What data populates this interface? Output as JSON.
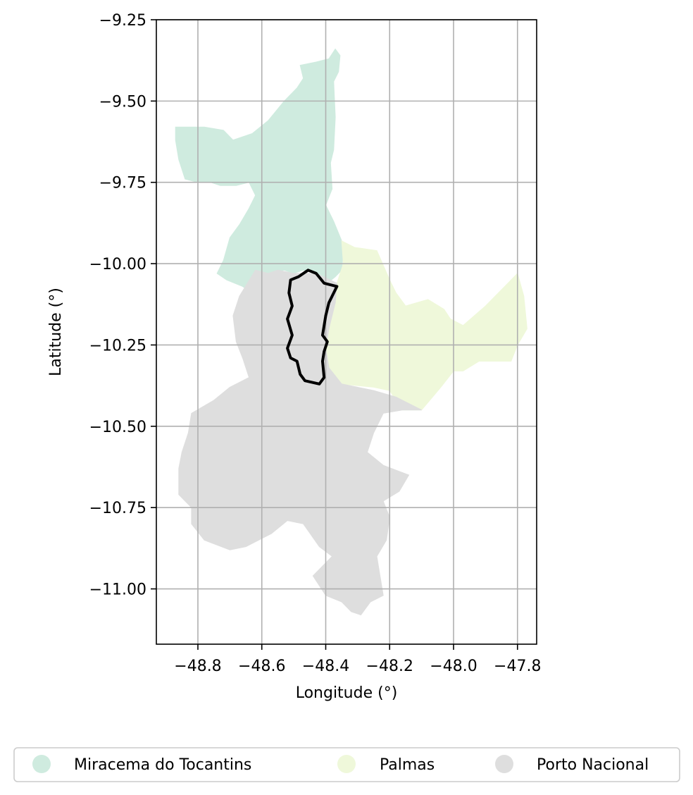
{
  "chart_data": {
    "type": "map",
    "xlabel": "Longitude (°)",
    "ylabel": "Latitude (°)",
    "xlim": [
      -48.93,
      -47.74
    ],
    "ylim": [
      -11.17,
      -9.25
    ],
    "xticks": [
      -48.8,
      -48.6,
      -48.4,
      -48.2,
      -48.0,
      -47.8
    ],
    "xtick_labels": [
      "−48.8",
      "−48.6",
      "−48.4",
      "−48.2",
      "−48.0",
      "−47.8"
    ],
    "yticks": [
      -9.25,
      -9.5,
      -9.75,
      -10.0,
      -10.25,
      -10.5,
      -10.75,
      -11.0
    ],
    "ytick_labels": [
      "−9.25",
      "−9.50",
      "−9.75",
      "−10.00",
      "−10.25",
      "−10.50",
      "−10.75",
      "−11.00"
    ],
    "grid": true,
    "legend_position": "bottom",
    "regions": [
      {
        "name": "Miracema do Tocantins",
        "color": "#cfebdf",
        "polygon": [
          [
            -48.37,
            -9.34
          ],
          [
            -48.355,
            -9.36
          ],
          [
            -48.36,
            -9.41
          ],
          [
            -48.375,
            -9.44
          ],
          [
            -48.37,
            -9.55
          ],
          [
            -48.375,
            -9.65
          ],
          [
            -48.385,
            -9.69
          ],
          [
            -48.38,
            -9.77
          ],
          [
            -48.4,
            -9.82
          ],
          [
            -48.375,
            -9.87
          ],
          [
            -48.35,
            -9.93
          ],
          [
            -48.345,
            -9.96
          ],
          [
            -48.35,
            -10.02
          ],
          [
            -48.37,
            -10.04
          ],
          [
            -48.395,
            -10.06
          ],
          [
            -48.43,
            -10.03
          ],
          [
            -48.47,
            -10.02
          ],
          [
            -48.5,
            -10.03
          ],
          [
            -48.53,
            -10.02
          ],
          [
            -48.57,
            -10.03
          ],
          [
            -48.6,
            -10.04
          ],
          [
            -48.63,
            -10.09
          ],
          [
            -48.66,
            -10.07
          ],
          [
            -48.71,
            -10.05
          ],
          [
            -48.74,
            -10.03
          ],
          [
            -48.72,
            -9.99
          ],
          [
            -48.7,
            -9.92
          ],
          [
            -48.67,
            -9.88
          ],
          [
            -48.64,
            -9.83
          ],
          [
            -48.62,
            -9.79
          ],
          [
            -48.64,
            -9.75
          ],
          [
            -48.68,
            -9.76
          ],
          [
            -48.73,
            -9.76
          ],
          [
            -48.76,
            -9.75
          ],
          [
            -48.8,
            -9.75
          ],
          [
            -48.84,
            -9.74
          ],
          [
            -48.86,
            -9.68
          ],
          [
            -48.87,
            -9.62
          ],
          [
            -48.87,
            -9.58
          ],
          [
            -48.78,
            -9.58
          ],
          [
            -48.72,
            -9.59
          ],
          [
            -48.69,
            -9.62
          ],
          [
            -48.66,
            -9.61
          ],
          [
            -48.63,
            -9.6
          ],
          [
            -48.58,
            -9.56
          ],
          [
            -48.53,
            -9.5
          ],
          [
            -48.49,
            -9.46
          ],
          [
            -48.47,
            -9.43
          ],
          [
            -48.48,
            -9.39
          ],
          [
            -48.43,
            -9.38
          ],
          [
            -48.39,
            -9.37
          ]
        ]
      },
      {
        "name": "Palmas",
        "color": "#eff8da",
        "polygon": [
          [
            -48.35,
            -9.93
          ],
          [
            -48.31,
            -9.95
          ],
          [
            -48.24,
            -9.96
          ],
          [
            -48.2,
            -10.05
          ],
          [
            -48.18,
            -10.09
          ],
          [
            -48.15,
            -10.13
          ],
          [
            -48.08,
            -10.11
          ],
          [
            -48.03,
            -10.14
          ],
          [
            -48.01,
            -10.17
          ],
          [
            -47.97,
            -10.19
          ],
          [
            -47.9,
            -10.13
          ],
          [
            -47.83,
            -10.06
          ],
          [
            -47.8,
            -10.03
          ],
          [
            -47.78,
            -10.1
          ],
          [
            -47.77,
            -10.2
          ],
          [
            -47.8,
            -10.25
          ],
          [
            -47.82,
            -10.3
          ],
          [
            -47.86,
            -10.3
          ],
          [
            -47.92,
            -10.3
          ],
          [
            -47.97,
            -10.33
          ],
          [
            -48.0,
            -10.33
          ],
          [
            -48.04,
            -10.38
          ],
          [
            -48.1,
            -10.45
          ],
          [
            -48.16,
            -10.45
          ],
          [
            -48.2,
            -10.39
          ],
          [
            -48.25,
            -10.38
          ],
          [
            -48.35,
            -10.37
          ],
          [
            -48.39,
            -10.32
          ],
          [
            -48.4,
            -10.26
          ],
          [
            -48.39,
            -10.2
          ],
          [
            -48.37,
            -10.12
          ],
          [
            -48.365,
            -10.06
          ],
          [
            -48.345,
            -10.0
          ]
        ]
      },
      {
        "name": "Porto Nacional",
        "color": "#dedede",
        "polygon": [
          [
            -48.62,
            -10.02
          ],
          [
            -48.67,
            -10.1
          ],
          [
            -48.69,
            -10.16
          ],
          [
            -48.68,
            -10.24
          ],
          [
            -48.66,
            -10.29
          ],
          [
            -48.64,
            -10.35
          ],
          [
            -48.7,
            -10.38
          ],
          [
            -48.75,
            -10.42
          ],
          [
            -48.82,
            -10.46
          ],
          [
            -48.83,
            -10.52
          ],
          [
            -48.85,
            -10.58
          ],
          [
            -48.86,
            -10.63
          ],
          [
            -48.86,
            -10.71
          ],
          [
            -48.82,
            -10.75
          ],
          [
            -48.82,
            -10.8
          ],
          [
            -48.78,
            -10.85
          ],
          [
            -48.7,
            -10.88
          ],
          [
            -48.65,
            -10.87
          ],
          [
            -48.57,
            -10.83
          ],
          [
            -48.52,
            -10.79
          ],
          [
            -48.47,
            -10.8
          ],
          [
            -48.42,
            -10.87
          ],
          [
            -48.38,
            -10.9
          ],
          [
            -48.44,
            -10.96
          ],
          [
            -48.4,
            -11.02
          ],
          [
            -48.35,
            -11.04
          ],
          [
            -48.32,
            -11.07
          ],
          [
            -48.29,
            -11.08
          ],
          [
            -48.26,
            -11.04
          ],
          [
            -48.22,
            -11.02
          ],
          [
            -48.23,
            -10.96
          ],
          [
            -48.24,
            -10.9
          ],
          [
            -48.21,
            -10.85
          ],
          [
            -48.2,
            -10.78
          ],
          [
            -48.22,
            -10.73
          ],
          [
            -48.17,
            -10.7
          ],
          [
            -48.14,
            -10.65
          ],
          [
            -48.22,
            -10.62
          ],
          [
            -48.27,
            -10.58
          ],
          [
            -48.25,
            -10.52
          ],
          [
            -48.22,
            -10.46
          ],
          [
            -48.16,
            -10.45
          ],
          [
            -48.1,
            -10.45
          ],
          [
            -48.18,
            -10.41
          ],
          [
            -48.25,
            -10.39
          ],
          [
            -48.35,
            -10.37
          ],
          [
            -48.39,
            -10.32
          ],
          [
            -48.4,
            -10.26
          ],
          [
            -48.39,
            -10.2
          ],
          [
            -48.37,
            -10.12
          ],
          [
            -48.365,
            -10.06
          ],
          [
            -48.43,
            -10.03
          ],
          [
            -48.5,
            -10.03
          ],
          [
            -48.55,
            -10.02
          ],
          [
            -48.58,
            -10.03
          ]
        ]
      }
    ],
    "highlight_outline": {
      "color": "#000000",
      "polygon": [
        [
          -48.455,
          -10.02
        ],
        [
          -48.43,
          -10.03
        ],
        [
          -48.405,
          -10.06
        ],
        [
          -48.365,
          -10.07
        ],
        [
          -48.39,
          -10.12
        ],
        [
          -48.4,
          -10.16
        ],
        [
          -48.41,
          -10.22
        ],
        [
          -48.395,
          -10.24
        ],
        [
          -48.405,
          -10.27
        ],
        [
          -48.41,
          -10.3
        ],
        [
          -48.405,
          -10.35
        ],
        [
          -48.42,
          -10.37
        ],
        [
          -48.465,
          -10.36
        ],
        [
          -48.48,
          -10.34
        ],
        [
          -48.49,
          -10.3
        ],
        [
          -48.51,
          -10.29
        ],
        [
          -48.52,
          -10.26
        ],
        [
          -48.505,
          -10.22
        ],
        [
          -48.52,
          -10.17
        ],
        [
          -48.505,
          -10.13
        ],
        [
          -48.515,
          -10.09
        ],
        [
          -48.51,
          -10.05
        ],
        [
          -48.485,
          -10.04
        ]
      ]
    },
    "legend": [
      {
        "label": "Miracema do Tocantins",
        "color": "#cfebdf"
      },
      {
        "label": "Palmas",
        "color": "#eff8da"
      },
      {
        "label": "Porto Nacional",
        "color": "#dedede"
      }
    ]
  }
}
